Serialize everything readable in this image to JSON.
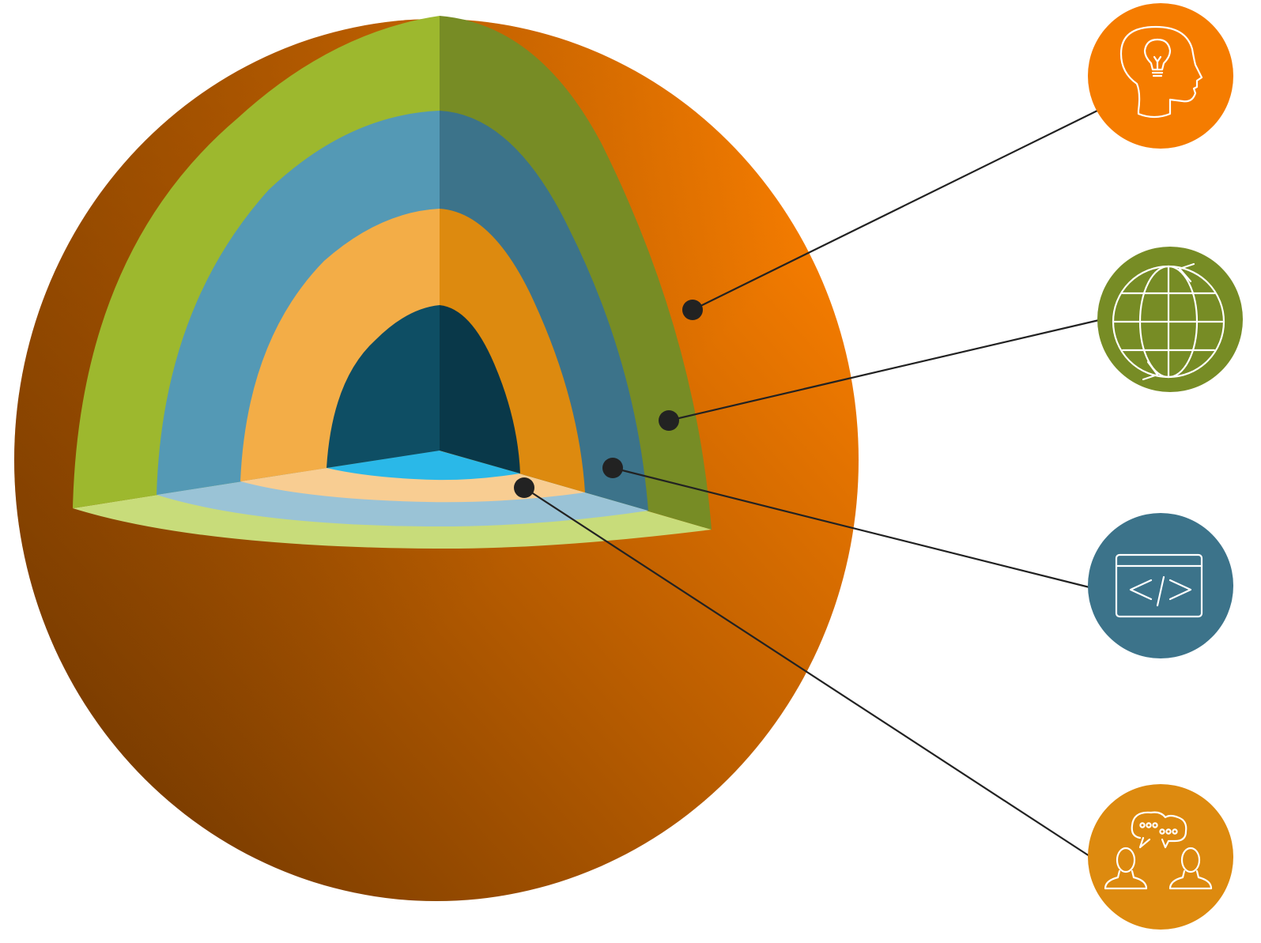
{
  "colors": {
    "sphere_light": "#f57c00",
    "sphere_dark": "#7a3c00",
    "layer_outer_front": "#9db82e",
    "layer_outer_side": "#778c25",
    "layer_outer_floor": "#c8dc7a",
    "layer_blue_front": "#5499b5",
    "layer_blue_side": "#3c738a",
    "layer_blue_floor": "#9ac3d6",
    "layer_peach_front": "#f3ad47",
    "layer_peach_side": "#dd8a0f",
    "layer_peach_floor": "#f8cd92",
    "layer_core_front": "#0e4e64",
    "layer_core_side": "#093849",
    "layer_core_floor": "#2ab8e8",
    "marker": "#222222",
    "connector": "#222222"
  },
  "callouts": [
    {
      "icon": "head-lightbulb-icon",
      "color": "#f57c00"
    },
    {
      "icon": "globe-arrows-icon",
      "color": "#778c25"
    },
    {
      "icon": "code-window-icon",
      "color": "#3c738a"
    },
    {
      "icon": "people-chat-icon",
      "color": "#dd8a0f"
    }
  ]
}
